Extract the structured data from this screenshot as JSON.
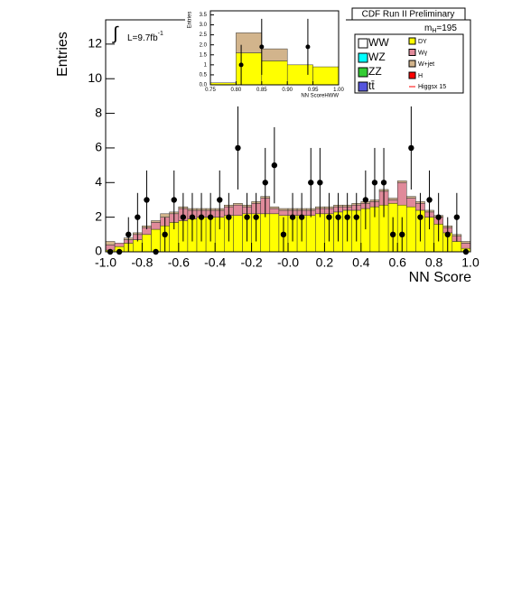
{
  "chart_data": {
    "type": "stacked_histogram",
    "title": "CDF Run II Preliminary",
    "xlabel": "NN Score",
    "ylabel": "Entries",
    "integral": "∫",
    "lumi": "L=9.7fb",
    "lumi_sup": "-1",
    "mass_label": "m",
    "mass_sub": "H",
    "mass_value": "=195",
    "bins": [
      -1.0,
      -0.95,
      -0.9,
      -0.85,
      -0.8,
      -0.75,
      -0.7,
      -0.65,
      -0.6,
      -0.55,
      -0.5,
      -0.45,
      -0.4,
      -0.35,
      -0.3,
      -0.25,
      -0.2,
      -0.15,
      -0.1,
      -0.05,
      0.0,
      0.05,
      0.1,
      0.15,
      0.2,
      0.25,
      0.3,
      0.35,
      0.4,
      0.45,
      0.5,
      0.55,
      0.6,
      0.65,
      0.7,
      0.75,
      0.8,
      0.85,
      0.9,
      0.95,
      1.0
    ],
    "series": [
      {
        "name": "DY",
        "color": "#ffff00",
        "values": [
          0.1,
          0.3,
          0.5,
          0.7,
          1.0,
          1.3,
          1.5,
          1.7,
          1.8,
          1.9,
          2.0,
          2.0,
          2.0,
          2.1,
          2.1,
          2.2,
          2.2,
          2.2,
          2.2,
          2.1,
          2.1,
          2.1,
          2.1,
          2.2,
          2.2,
          2.3,
          2.4,
          2.4,
          2.5,
          2.6,
          2.7,
          2.8,
          2.7,
          2.6,
          2.4,
          2.0,
          1.6,
          1.1,
          0.6,
          0.2
        ]
      },
      {
        "name": "Wγ",
        "color": "#e08a9a",
        "values": [
          0.3,
          0.2,
          0.2,
          0.3,
          0.4,
          0.4,
          0.5,
          0.5,
          0.7,
          0.5,
          0.4,
          0.4,
          0.4,
          0.5,
          0.6,
          0.4,
          0.6,
          0.9,
          0.3,
          0.3,
          0.3,
          0.3,
          0.3,
          0.3,
          0.3,
          0.3,
          0.2,
          0.3,
          0.3,
          0.3,
          0.8,
          0.2,
          1.3,
          0.5,
          0.4,
          0.3,
          0.4,
          0.3,
          0.3,
          0.3
        ]
      },
      {
        "name": "W+jet",
        "color": "#d2b48c",
        "values": [
          0.2,
          0.0,
          0.1,
          0.1,
          0.1,
          0.1,
          0.2,
          0.1,
          0.1,
          0.1,
          0.1,
          0.1,
          0.1,
          0.1,
          0.1,
          0.1,
          0.1,
          0.1,
          0.1,
          0.1,
          0.1,
          0.1,
          0.1,
          0.1,
          0.1,
          0.1,
          0.1,
          0.1,
          0.1,
          0.1,
          0.1,
          0.1,
          0.1,
          0.1,
          0.1,
          0.1,
          0.1,
          0.1,
          0.1,
          0.1
        ]
      }
    ],
    "other_legend": [
      {
        "name": "WW",
        "color": "#ffffff"
      },
      {
        "name": "WZ",
        "color": "#00ffff"
      },
      {
        "name": "ZZ",
        "color": "#33cc33"
      },
      {
        "name": "tt̄",
        "color": "#5555dd"
      },
      {
        "name": "H",
        "color": "#ff0000"
      },
      {
        "name": "Higgsx 15",
        "color": "#ff0000"
      }
    ],
    "data_points": {
      "values": [
        0,
        0,
        1,
        2,
        3,
        0,
        1,
        3,
        2,
        2,
        2,
        2,
        3,
        2,
        6,
        2,
        2,
        4,
        5,
        1,
        2,
        2,
        4,
        4,
        2,
        2,
        2,
        2,
        3,
        4,
        4,
        1,
        1,
        6,
        2,
        3,
        2,
        1,
        2,
        0
      ],
      "errors": [
        0,
        0,
        1,
        1.4,
        1.7,
        0,
        1,
        1.7,
        1.4,
        1.4,
        1.4,
        1.4,
        1.7,
        1.4,
        2.4,
        1.4,
        1.4,
        2,
        2.2,
        1,
        1.4,
        1.4,
        2,
        2,
        1.4,
        1.4,
        1.4,
        1.4,
        1.7,
        2,
        2,
        1,
        1,
        2.4,
        1.4,
        1.7,
        1.4,
        1,
        1.4,
        0
      ]
    },
    "xlim": [
      -1.0,
      1.0
    ],
    "xticks": [
      {
        "value": -1.0,
        "label": "-1.0"
      },
      -0.8,
      -0.6,
      -0.4,
      -0.2,
      {
        "value": 0,
        "label": "-0.0"
      },
      0.2,
      0.4,
      0.6,
      0.8,
      {
        "value": 1.0,
        "label": "1.0"
      }
    ],
    "ylim": [
      0,
      13.4
    ],
    "yticks": [
      0,
      2,
      4,
      6,
      8,
      10,
      12
    ],
    "inset": {
      "xlabel": "NN ScoreHWW",
      "ylabel": "Entries",
      "bins": [
        0.75,
        0.8,
        0.85,
        0.9,
        0.95,
        1.0
      ],
      "series": [
        {
          "name": "DY",
          "color": "#ffff00",
          "values": [
            0.1,
            1.6,
            1.2,
            1.0,
            0.9
          ]
        },
        {
          "name": "W+jet",
          "color": "#d2b48c",
          "values": [
            0.0,
            1.0,
            0.6,
            0.0,
            0.0
          ]
        }
      ],
      "data_x": [
        0.81,
        0.85,
        0.94
      ],
      "data_y": [
        1.0,
        1.9,
        1.9
      ],
      "data_err": [
        1.0,
        1.4,
        1.4
      ],
      "xlim": [
        0.75,
        1.0
      ],
      "xticks": [
        {
          "value": 0.75,
          "label": "0.75"
        },
        {
          "value": 0.8,
          "label": "0.80"
        },
        {
          "value": 0.85,
          "label": "0.85"
        },
        {
          "value": 0.9,
          "label": "0.90"
        },
        {
          "value": 0.95,
          "label": "0.95"
        },
        {
          "value": 1.0,
          "label": "1.00"
        }
      ],
      "ylim": [
        0,
        3.7
      ],
      "yticks": [
        {
          "value": 0,
          "label": "0.0"
        },
        {
          "value": 0.5,
          "label": "0.5"
        },
        1,
        {
          "value": 1.5,
          "label": "1.5"
        },
        {
          "value": 2,
          "label": "2.0"
        },
        {
          "value": 2.5,
          "label": "2.5"
        },
        {
          "value": 3,
          "label": "3.0"
        },
        {
          "value": 3.5,
          "label": "3.5"
        }
      ]
    }
  }
}
